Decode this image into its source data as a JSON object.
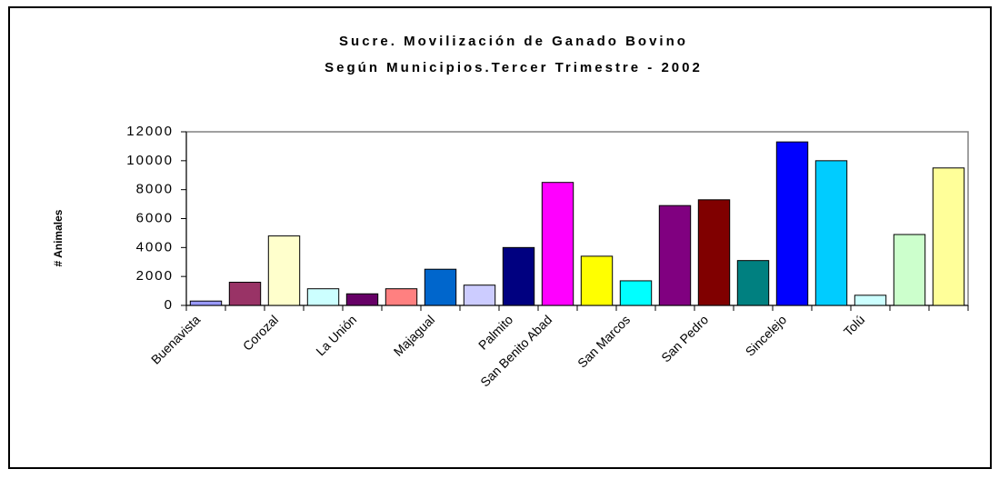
{
  "chart_data": {
    "type": "bar",
    "title": "Sucre. Movilización de Ganado Bovino",
    "subtitle": "Según Municipios.Tercer Trimestre - 2002",
    "y_label": "# Animales",
    "categories": [
      "Buenavista",
      null,
      "Corozal",
      null,
      "La Unión",
      null,
      "Majagual",
      null,
      "Palmito",
      "San Benito Abad",
      null,
      "San Marcos",
      null,
      "San Pedro",
      null,
      "Sincelejo",
      null,
      "Tolú",
      null,
      null
    ],
    "values": [
      300,
      1600,
      4800,
      1150,
      800,
      1150,
      2500,
      1400,
      4000,
      8500,
      3400,
      1700,
      6900,
      7300,
      3100,
      11300,
      10000,
      700,
      4900,
      9500
    ],
    "colors": [
      "#9999ff",
      "#993366",
      "#ffffcc",
      "#ccffff",
      "#660066",
      "#ff8080",
      "#0066cc",
      "#ccccff",
      "#000080",
      "#ff00ff",
      "#ffff00",
      "#00ffff",
      "#800080",
      "#800000",
      "#008080",
      "#0000ff",
      "#00ccff",
      "#ccffff",
      "#ccffcc",
      "#ffff99"
    ],
    "ylim": [
      0,
      12000
    ],
    "yticks": [
      0,
      2000,
      4000,
      6000,
      8000,
      10000,
      12000
    ],
    "grid": false
  }
}
